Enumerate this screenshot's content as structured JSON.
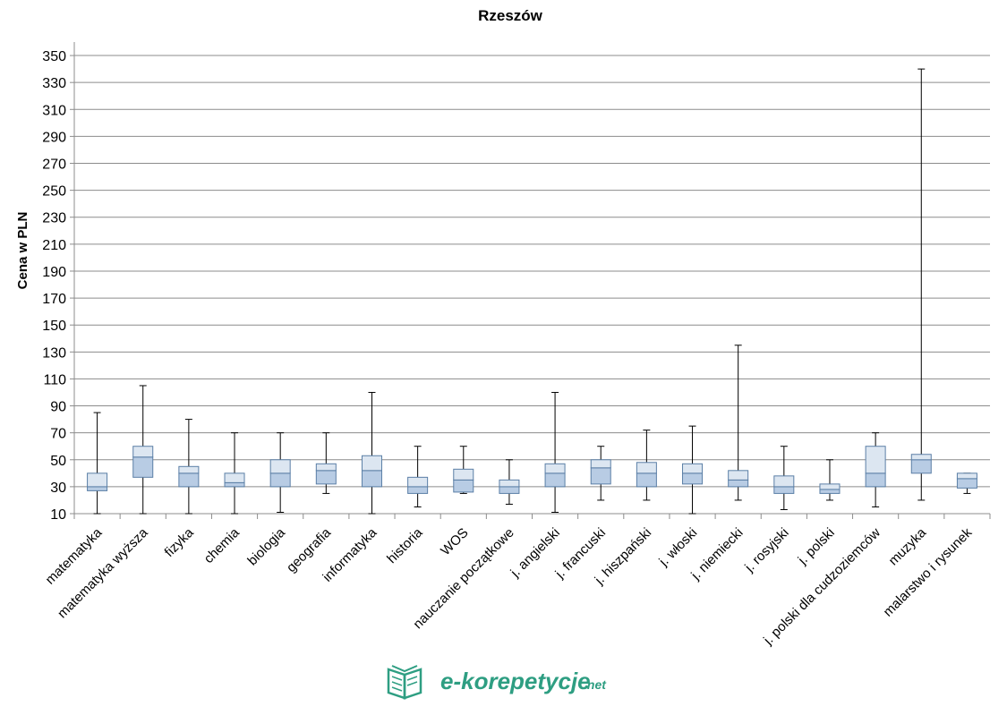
{
  "chart_data": {
    "type": "box",
    "title": "Rzeszów",
    "ylabel": "Cena w PLN",
    "xlabel": "",
    "ylim": [
      10,
      360
    ],
    "yticks": [
      10,
      30,
      50,
      70,
      90,
      110,
      130,
      150,
      170,
      190,
      210,
      230,
      250,
      270,
      290,
      310,
      330,
      350
    ],
    "grid": true,
    "categories": [
      "matematyka",
      "matematyka wyższa",
      "fizyka",
      "chemia",
      "biologia",
      "geografia",
      "informatyka",
      "historia",
      "WOS",
      "nauczanie początkowe",
      "j. angielski",
      "j. francuski",
      "j. hiszpański",
      "j. włoski",
      "j. niemiecki",
      "j. rosyjski",
      "j. polski",
      "j. polski dla cudzoziemców",
      "muzyka",
      "malarstwo i rysunek"
    ],
    "boxes": [
      {
        "min": 10,
        "q1": 27,
        "median": 30,
        "q3": 40,
        "max": 85
      },
      {
        "min": 10,
        "q1": 37,
        "median": 52,
        "q3": 60,
        "max": 105
      },
      {
        "min": 10,
        "q1": 30,
        "median": 40,
        "q3": 45,
        "max": 80
      },
      {
        "min": 10,
        "q1": 30,
        "median": 33,
        "q3": 40,
        "max": 70
      },
      {
        "min": 11,
        "q1": 30,
        "median": 40,
        "q3": 50,
        "max": 70
      },
      {
        "min": 25,
        "q1": 32,
        "median": 42,
        "q3": 47,
        "max": 70
      },
      {
        "min": 10,
        "q1": 30,
        "median": 42,
        "q3": 53,
        "max": 100
      },
      {
        "min": 15,
        "q1": 25,
        "median": 30,
        "q3": 37,
        "max": 60
      },
      {
        "min": 25,
        "q1": 26,
        "median": 35,
        "q3": 43,
        "max": 60
      },
      {
        "min": 17,
        "q1": 25,
        "median": 30,
        "q3": 35,
        "max": 50
      },
      {
        "min": 11,
        "q1": 30,
        "median": 40,
        "q3": 47,
        "max": 100
      },
      {
        "min": 20,
        "q1": 32,
        "median": 44,
        "q3": 50,
        "max": 60
      },
      {
        "min": 20,
        "q1": 30,
        "median": 40,
        "q3": 48,
        "max": 72
      },
      {
        "min": 10,
        "q1": 32,
        "median": 40,
        "q3": 47,
        "max": 75
      },
      {
        "min": 20,
        "q1": 30,
        "median": 35,
        "q3": 42,
        "max": 135
      },
      {
        "min": 13,
        "q1": 25,
        "median": 30,
        "q3": 38,
        "max": 60
      },
      {
        "min": 20,
        "q1": 25,
        "median": 28,
        "q3": 32,
        "max": 50
      },
      {
        "min": 15,
        "q1": 30,
        "median": 40,
        "q3": 60,
        "max": 70
      },
      {
        "min": 20,
        "q1": 40,
        "median": 50,
        "q3": 54,
        "max": 340
      },
      {
        "min": 25,
        "q1": 29,
        "median": 36,
        "q3": 40,
        "max": 40
      }
    ],
    "colors": {
      "lower_box": "#b8cce4",
      "upper_box": "#dce6f1",
      "box_border": "#5b7fa6",
      "grid": "#8c8c8c"
    }
  },
  "logo": {
    "name": "e-korepetycje",
    "suffix": ".net",
    "icon": "open-book-icon",
    "color": "#2e9e82"
  }
}
